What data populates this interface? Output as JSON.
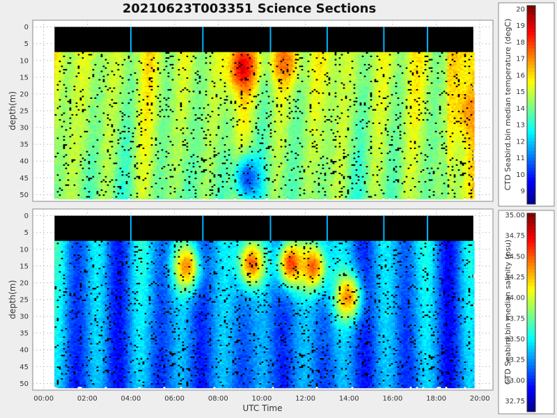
{
  "title": "20210623T003351 Science Sections",
  "colors": {
    "background": "#eeeeee",
    "plot_background": "#ffffff",
    "mask": "#000000",
    "grid": "#c8c8c8"
  },
  "chart_data": [
    {
      "type": "heatmap",
      "name": "temperature",
      "ylabel": "depth(m)",
      "y_ticks": [
        "0",
        "5",
        "10",
        "15",
        "20",
        "25",
        "30",
        "35",
        "40",
        "45",
        "50"
      ],
      "ylim": [
        52,
        -2
      ],
      "grid": true,
      "colormap": "jet",
      "colorbar": {
        "label": "CTD Seabird.bin median temperature (degC)",
        "min": 8.2,
        "max": 20.2,
        "ticks": [
          "20",
          "19",
          "18",
          "17",
          "16",
          "15",
          "14",
          "13",
          "12",
          "11",
          "10",
          "9"
        ]
      },
      "colors_note": "varied 13-17 degC, warm core near 09:00-10:00 at 8-20 m, cold below 35 m near 09:30",
      "hot_spots": [
        {
          "t_hours": 9.1,
          "depth": 12,
          "value": 19.0
        },
        {
          "t_hours": 11.0,
          "depth": 10,
          "value": 17.5
        },
        {
          "t_hours": 19.5,
          "depth": 25,
          "value": 17.0
        }
      ],
      "cold_spots": [
        {
          "t_hours": 9.3,
          "depth": 45,
          "value": 10.5
        }
      ]
    },
    {
      "type": "heatmap",
      "name": "salinity",
      "ylabel": "depth(m)",
      "y_ticks": [
        "0",
        "5",
        "10",
        "15",
        "20",
        "25",
        "30",
        "35",
        "40",
        "45",
        "50"
      ],
      "ylim": [
        52,
        -2
      ],
      "grid": true,
      "colormap": "jet",
      "colorbar": {
        "label": "CTD Seabird.bin median salinity (psu)",
        "min": 32.62,
        "max": 35.02,
        "ticks": [
          "35.00",
          "34.75",
          "34.50",
          "34.25",
          "34.00",
          "33.75",
          "33.50",
          "33.25",
          "33.00",
          "32.75"
        ]
      },
      "hot_spots": [
        {
          "t_hours": 6.5,
          "depth": 15,
          "value": 34.4
        },
        {
          "t_hours": 9.5,
          "depth": 14,
          "value": 34.5
        },
        {
          "t_hours": 11.3,
          "depth": 14,
          "value": 34.6
        },
        {
          "t_hours": 12.3,
          "depth": 15,
          "value": 34.5
        },
        {
          "t_hours": 13.9,
          "depth": 24,
          "value": 34.4
        }
      ]
    }
  ],
  "x_axis": {
    "label": "UTC Time",
    "ticks": [
      "00:00",
      "02:00",
      "04:00",
      "06:00",
      "08:00",
      "10:00",
      "12:00",
      "14:00",
      "16:00",
      "18:00",
      "20:00"
    ],
    "range_hours": [
      -0.5,
      20.6
    ]
  },
  "data_extent_hours": [
    0.5,
    19.7
  ],
  "mask_depth": 7.5,
  "section_breaks_hours": [
    4.0,
    7.3,
    10.4,
    13.0,
    15.6,
    17.6
  ]
}
